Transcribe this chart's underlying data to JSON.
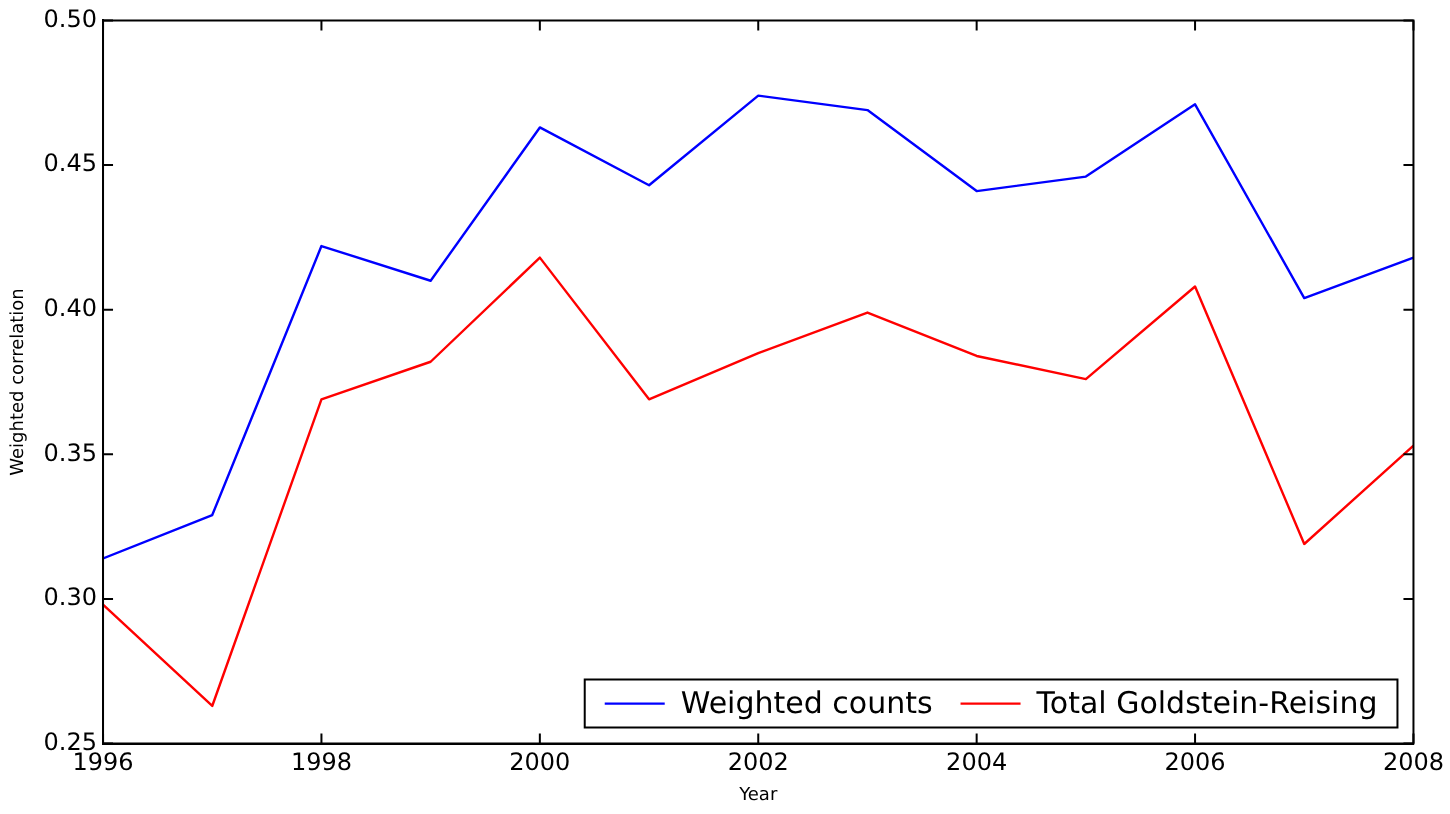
{
  "chart_data": {
    "type": "line",
    "xlabel": "Year",
    "ylabel": "Weighted correlation",
    "x": [
      1996,
      1997,
      1998,
      1999,
      2000,
      2001,
      2002,
      2003,
      2004,
      2005,
      2006,
      2007,
      2008
    ],
    "xlim": [
      1996,
      2008
    ],
    "xticks": [
      1996,
      1998,
      2000,
      2002,
      2004,
      2006,
      2008
    ],
    "ylim": [
      0.25,
      0.5
    ],
    "yticks": [
      0.25,
      {
        "value": 0.3,
        "label": "0.30"
      },
      0.35,
      {
        "value": 0.4,
        "label": "0.40"
      },
      0.45,
      {
        "value": 0.5,
        "label": "0.50"
      }
    ],
    "grid": false,
    "legend": "bottom right",
    "marker": "none",
    "line_style": "solid",
    "series": [
      {
        "name": "Weighted counts",
        "color": "#0000ff",
        "values": [
          0.314,
          0.329,
          0.422,
          0.41,
          0.463,
          0.443,
          0.474,
          0.469,
          0.441,
          0.446,
          0.471,
          0.404,
          0.418
        ]
      },
      {
        "name": "Total Goldstein-Reising",
        "color": "#ff0000",
        "values": [
          0.298,
          0.263,
          0.369,
          0.382,
          0.418,
          0.369,
          0.385,
          0.399,
          0.384,
          0.376,
          0.408,
          0.319,
          0.353
        ]
      }
    ]
  }
}
